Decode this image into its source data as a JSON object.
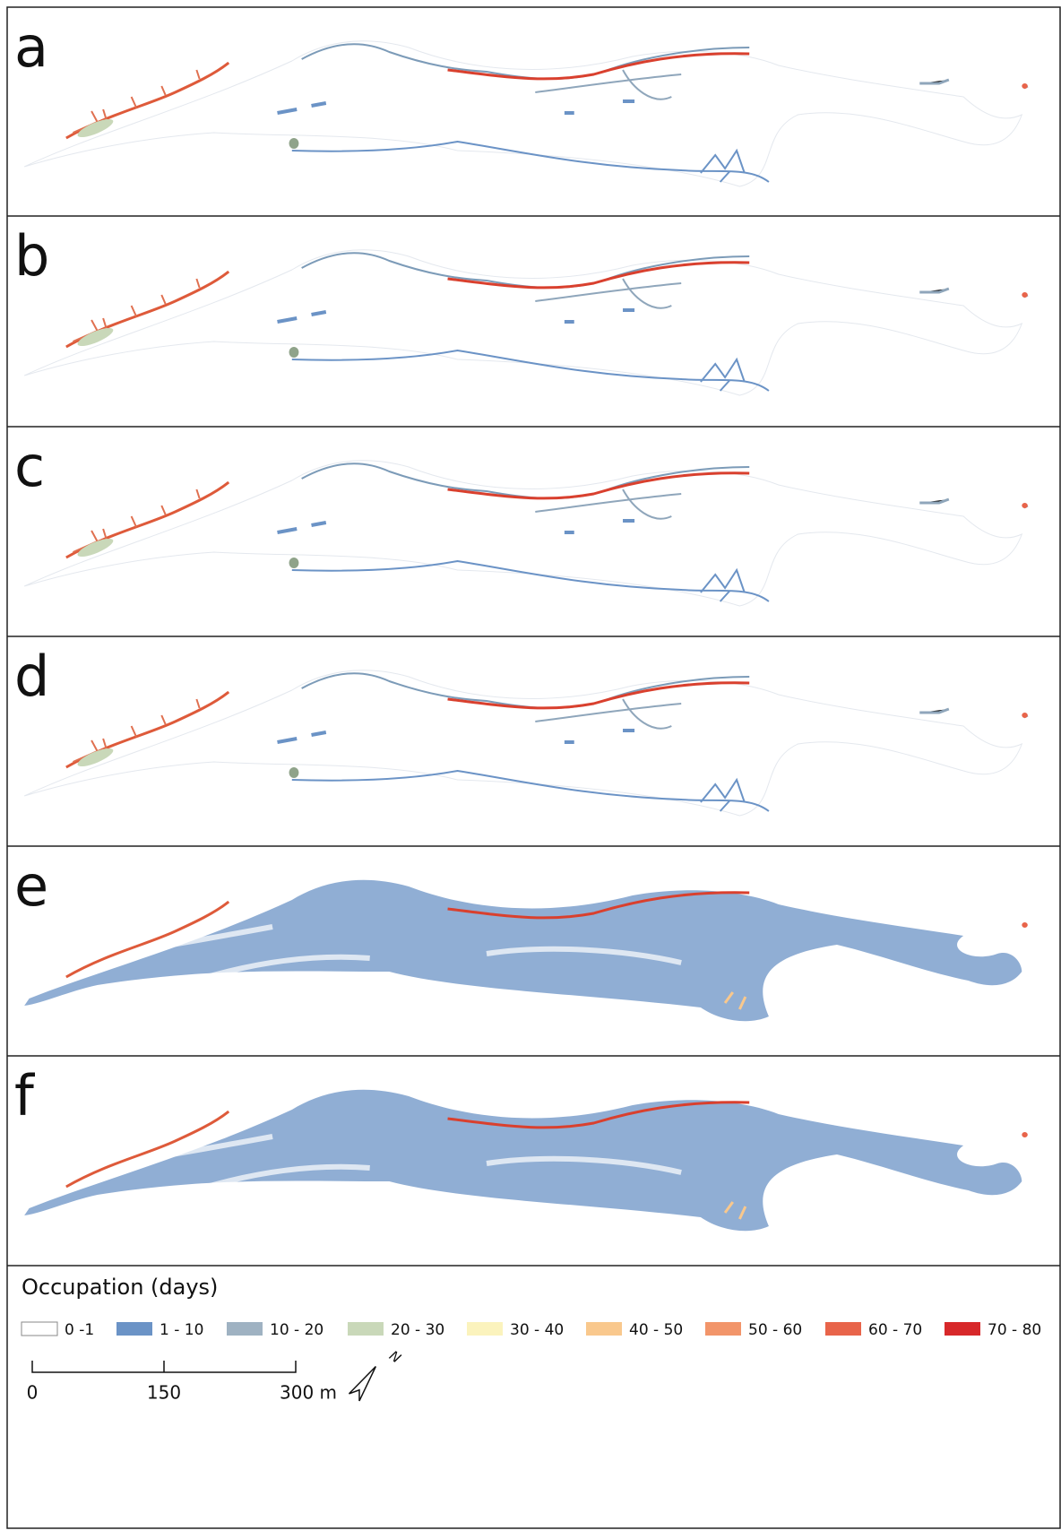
{
  "panels": [
    {
      "label": "a"
    },
    {
      "label": "b"
    },
    {
      "label": "c"
    },
    {
      "label": "d"
    },
    {
      "label": "e"
    },
    {
      "label": "f"
    }
  ],
  "legend": {
    "title": "Occupation (days)",
    "items": [
      {
        "label": "0 -1",
        "color": "#ffffff"
      },
      {
        "label": "1 - 10",
        "color": "#6b93c6"
      },
      {
        "label": "10 - 20",
        "color": "#9fb2c2"
      },
      {
        "label": "20 - 30",
        "color": "#c9d8b9"
      },
      {
        "label": "30 - 40",
        "color": "#fbf3bd"
      },
      {
        "label": "40 - 50",
        "color": "#f9c88d"
      },
      {
        "label": "50 - 60",
        "color": "#f2956a"
      },
      {
        "label": "60 - 70",
        "color": "#e8644a"
      },
      {
        "label": "70 - 80",
        "color": "#d7282a"
      }
    ]
  },
  "scale_bar": {
    "labels": [
      "0",
      "150",
      "300 m"
    ]
  },
  "north": "N"
}
